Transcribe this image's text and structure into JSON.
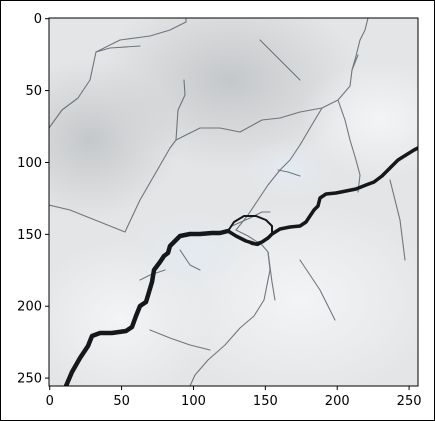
{
  "figure": {
    "image_subject": "cracked-concrete-surface",
    "palette": {
      "background": "#e4e5e6",
      "shadow": "#c7c9cb",
      "highlight": "#f1f2f4",
      "crack": "#15181b",
      "hairline": "#4b525a"
    },
    "x_axis": {
      "ticks": [
        {
          "value": 0,
          "label": "0"
        },
        {
          "value": 50,
          "label": "50"
        },
        {
          "value": 100,
          "label": "100"
        },
        {
          "value": 150,
          "label": "150"
        },
        {
          "value": 200,
          "label": "200"
        },
        {
          "value": 250,
          "label": "250"
        }
      ],
      "range": [
        0,
        256
      ]
    },
    "y_axis": {
      "ticks": [
        {
          "value": 0,
          "label": "0"
        },
        {
          "value": 50,
          "label": "50"
        },
        {
          "value": 100,
          "label": "100"
        },
        {
          "value": 150,
          "label": "150"
        },
        {
          "value": 200,
          "label": "200"
        },
        {
          "value": 250,
          "label": "250"
        }
      ],
      "range": [
        0,
        256
      ]
    }
  }
}
